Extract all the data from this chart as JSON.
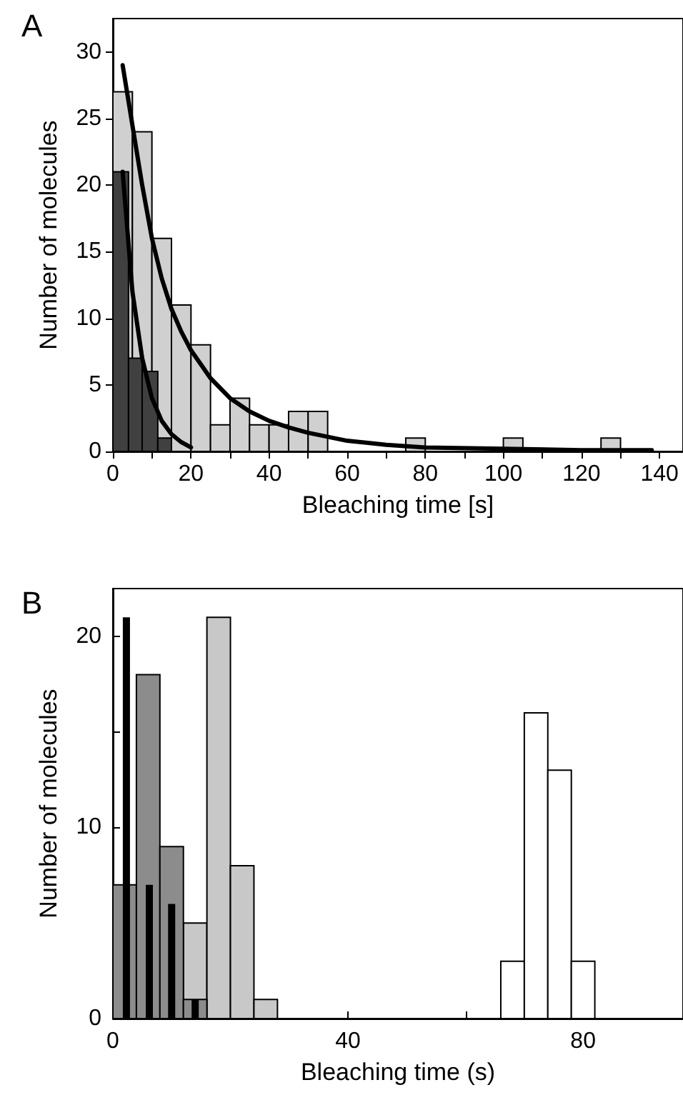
{
  "chart_data": [
    {
      "type": "histogram",
      "title": "A",
      "xlabel": "Bleaching time [s]",
      "ylabel": "Number of molecules",
      "xlim": [
        0,
        146
      ],
      "xticks": [
        0,
        {
          "value": 10,
          "label": null
        },
        20,
        {
          "value": 30,
          "label": null
        },
        40,
        {
          "value": 50,
          "label": null
        },
        60,
        {
          "value": 70,
          "label": null
        },
        80,
        {
          "value": 90,
          "label": null
        },
        100,
        {
          "value": 110,
          "label": null
        },
        120,
        {
          "value": 130,
          "label": null
        },
        140
      ],
      "ylim": [
        0,
        32.5
      ],
      "yticks": [
        0,
        5,
        10,
        15,
        20,
        25,
        30
      ],
      "grid": false,
      "series": [
        {
          "color": "#d0d0d0",
          "bins": [
            0,
            5,
            10,
            15,
            20,
            25,
            30,
            35,
            40,
            45,
            50,
            55,
            60,
            65,
            70,
            75,
            80,
            85,
            90,
            95,
            100,
            105,
            110,
            115,
            120,
            125,
            130
          ],
          "values": [
            27,
            24,
            16,
            11,
            8,
            2,
            4,
            2,
            2,
            3,
            3,
            null,
            null,
            null,
            null,
            1,
            null,
            null,
            null,
            null,
            1,
            null,
            null,
            null,
            null,
            1
          ]
        },
        {
          "color": "#404040",
          "bins": [
            0,
            4,
            7.5,
            11.5,
            15
          ],
          "values": [
            21,
            7,
            6,
            1
          ]
        },
        {
          "type": "line",
          "color": "#000000",
          "x": [
            2.5,
            5,
            7.5,
            10,
            12.5,
            15,
            17.5,
            20,
            25,
            30,
            35,
            40,
            45,
            50,
            60,
            70,
            80,
            100,
            120,
            138
          ],
          "values": [
            29,
            24.5,
            20,
            16,
            13,
            10.7,
            9,
            7.6,
            5.5,
            4,
            3,
            2.3,
            1.8,
            1.4,
            0.8,
            0.5,
            0.3,
            0.2,
            0.1,
            0.1
          ]
        },
        {
          "type": "line",
          "color": "#000000",
          "x": [
            2.5,
            5,
            7.5,
            10,
            12.5,
            15,
            17.5,
            20
          ],
          "values": [
            21,
            12,
            7,
            4,
            2.3,
            1.3,
            0.7,
            0.3
          ]
        }
      ]
    },
    {
      "type": "histogram",
      "title": "B",
      "xlabel": "Bleaching time (s)",
      "ylabel": "Number of molecules",
      "xlim": [
        0,
        97
      ],
      "xticks": [
        0,
        {
          "value": 20,
          "label": null
        },
        40,
        {
          "value": 60,
          "label": null
        },
        80
      ],
      "ylim": [
        0,
        22.5
      ],
      "yticks": [
        0,
        {
          "value": 5,
          "label": null
        },
        10,
        {
          "value": 15,
          "label": null
        },
        20
      ],
      "grid": false,
      "series": [
        {
          "color": "#c8c8c8",
          "bins": [
            12,
            16,
            20,
            24,
            28
          ],
          "values": [
            5,
            21,
            8,
            1
          ]
        },
        {
          "color": "#8c8c8c",
          "bins": [
            0,
            4,
            8,
            12,
            16
          ],
          "values": [
            7,
            18,
            9,
            1
          ]
        },
        {
          "type": "bar",
          "color": "#000000",
          "x": [
            2.3,
            6.2,
            10,
            14
          ],
          "values": [
            21,
            7,
            6,
            1
          ]
        },
        {
          "color": "#ffffff",
          "bins": [
            66,
            70,
            74,
            78,
            82
          ],
          "values": [
            3,
            16,
            13,
            3
          ]
        }
      ]
    }
  ]
}
